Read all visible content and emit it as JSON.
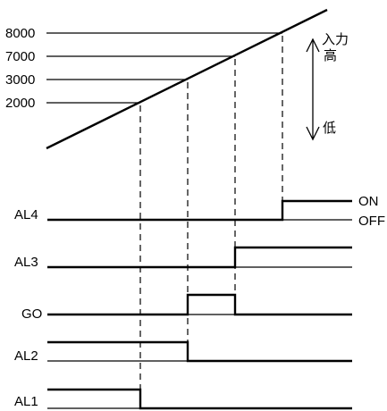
{
  "threshold_labels": [
    "8000",
    "7000",
    "3000",
    "2000"
  ],
  "input_labels": {
    "top": "入力",
    "high": "高",
    "low": "低"
  },
  "signal_labels": [
    "AL4",
    "AL3",
    "GO",
    "AL2",
    "AL1"
  ],
  "state_labels": {
    "on": "ON",
    "off": "OFF"
  }
}
